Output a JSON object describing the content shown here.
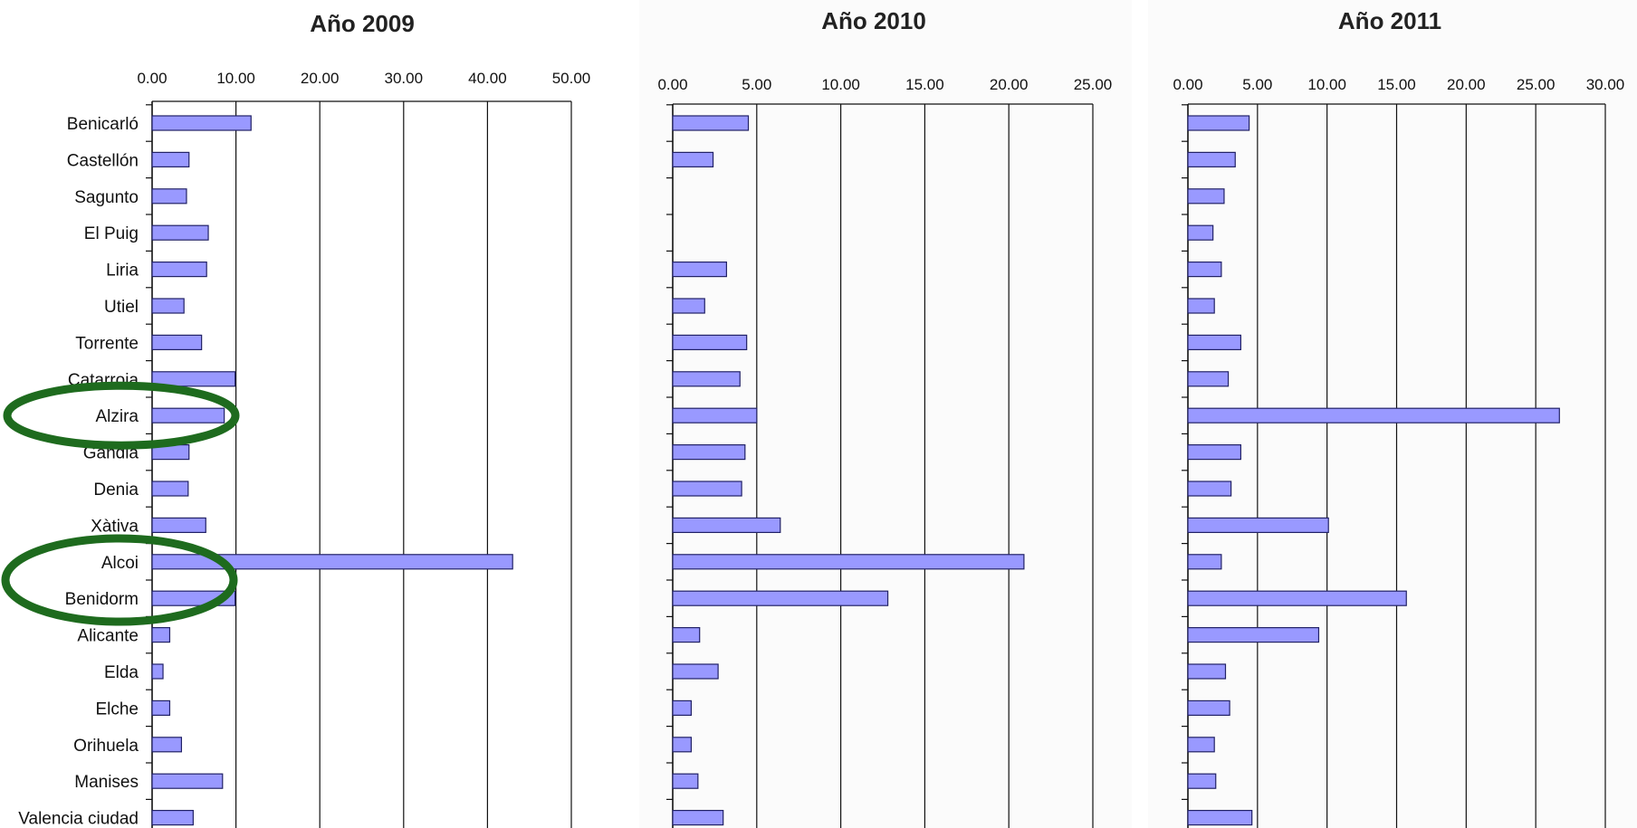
{
  "chart_data": [
    {
      "type": "bar",
      "orientation": "horizontal",
      "title": "Año 2009",
      "categories": [
        "Benicarló",
        "Castellón",
        "Sagunto",
        "El Puig",
        "Liria",
        "Utiel",
        "Torrente",
        "Catarroja",
        "Alzira",
        "Gandia",
        "Denia",
        "Xàtiva",
        "Alcoi",
        "Benidorm",
        "Alicante",
        "Elda",
        "Elche",
        "Orihuela",
        "Manises",
        "Valencia ciudad"
      ],
      "values": [
        11.8,
        4.4,
        4.1,
        6.7,
        6.5,
        3.8,
        5.9,
        9.9,
        8.6,
        4.4,
        4.3,
        6.4,
        43.0,
        9.9,
        2.1,
        1.3,
        2.1,
        3.5,
        8.4,
        4.9
      ],
      "xlim": [
        0,
        50
      ],
      "ticks": [
        "0.00",
        "10.00",
        "20.00",
        "30.00",
        "40.00",
        "50.00"
      ],
      "axis_position": "top",
      "grid": true,
      "bar_color": "#9999ff",
      "highlighted": [
        "Alzira",
        "Alcoi",
        "Benidorm"
      ],
      "highlight_color": "#1e6b1e"
    },
    {
      "type": "bar",
      "orientation": "horizontal",
      "title": "Año 2010",
      "categories": [
        "Benicarló",
        "Castellón",
        "Sagunto",
        "El Puig",
        "Liria",
        "Utiel",
        "Torrente",
        "Catarroja",
        "Alzira",
        "Gandia",
        "Denia",
        "Xàtiva",
        "Alcoi",
        "Benidorm",
        "Alicante",
        "Elda",
        "Elche",
        "Orihuela",
        "Manises",
        "Valencia ciudad"
      ],
      "values": [
        4.5,
        2.4,
        0,
        0,
        3.2,
        1.9,
        4.4,
        4.0,
        5.0,
        4.3,
        4.1,
        6.4,
        20.9,
        12.8,
        1.6,
        2.7,
        1.1,
        1.1,
        1.5,
        3.0
      ],
      "xlim": [
        0,
        25
      ],
      "ticks": [
        "0.00",
        "5.00",
        "10.00",
        "15.00",
        "20.00",
        "25.00"
      ],
      "axis_position": "top",
      "grid": true,
      "bar_color": "#9999ff"
    },
    {
      "type": "bar",
      "orientation": "horizontal",
      "title": "Año 2011",
      "categories": [
        "Benicarló",
        "Castellón",
        "Sagunto",
        "El Puig",
        "Liria",
        "Utiel",
        "Torrente",
        "Catarroja",
        "Alzira",
        "Gandia",
        "Denia",
        "Xàtiva",
        "Alcoi",
        "Benidorm",
        "Alicante",
        "Elda",
        "Elche",
        "Orihuela",
        "Manises",
        "Valencia ciudad"
      ],
      "values": [
        4.4,
        3.4,
        2.6,
        1.8,
        2.4,
        1.9,
        3.8,
        2.9,
        26.7,
        3.8,
        3.1,
        10.1,
        2.4,
        15.7,
        9.4,
        2.7,
        3.0,
        1.9,
        2.0,
        4.6
      ],
      "xlim": [
        0,
        30
      ],
      "ticks": [
        "0.00",
        "5.00",
        "10.00",
        "15.00",
        "20.00",
        "25.00",
        "30.00"
      ],
      "axis_position": "top",
      "grid": true,
      "bar_color": "#9999ff"
    }
  ]
}
